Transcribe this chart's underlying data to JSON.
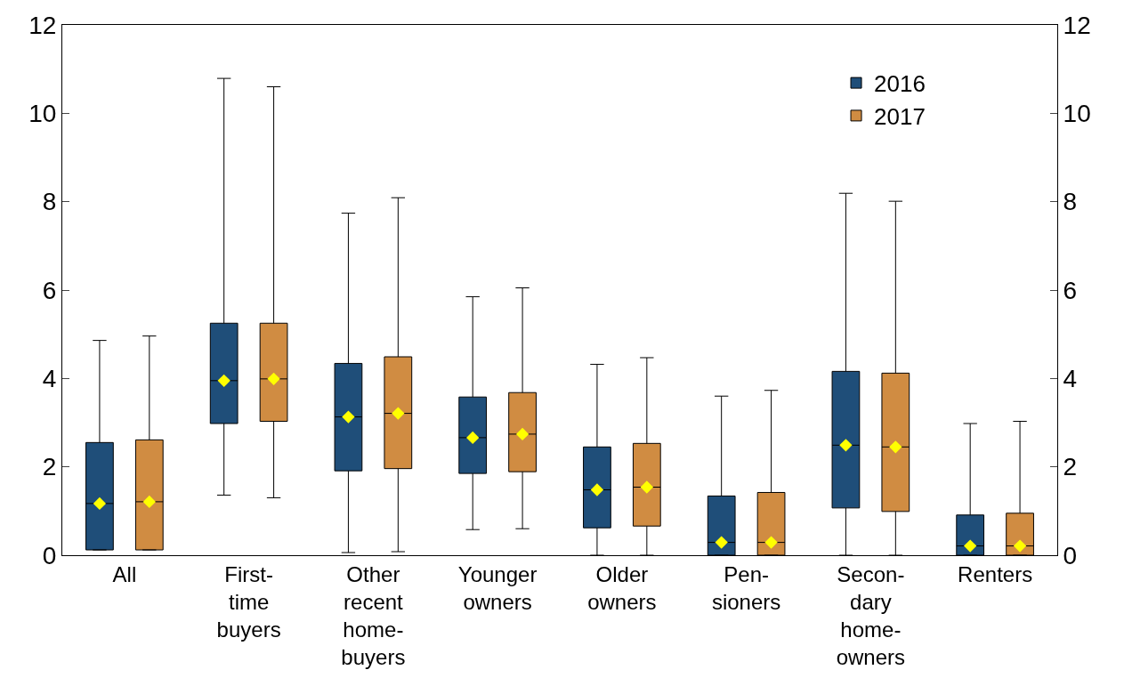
{
  "chart_data": {
    "type": "box",
    "categories": [
      "All",
      "First-\ntime\nbuyers",
      "Other\nrecent\nhome-\nbuyers",
      "Younger\nowners",
      "Older\nowners",
      "Pen-\nsioners",
      "Secon-\ndary\nhome-\nowners",
      "Renters"
    ],
    "series": [
      {
        "name": "2016",
        "color": "#1f4e79",
        "boxes": [
          {
            "low": 0.12,
            "q1": 0.12,
            "median": 1.17,
            "q3": 2.55,
            "high": 4.86,
            "mean": 1.17
          },
          {
            "low": 1.36,
            "q1": 2.98,
            "median": 3.95,
            "q3": 5.25,
            "high": 10.79,
            "mean": 3.95
          },
          {
            "low": 0.06,
            "q1": 1.91,
            "median": 3.13,
            "q3": 4.34,
            "high": 7.74,
            "mean": 3.13
          },
          {
            "low": 0.58,
            "q1": 1.85,
            "median": 2.66,
            "q3": 3.58,
            "high": 5.85,
            "mean": 2.66
          },
          {
            "low": 0,
            "q1": 0.62,
            "median": 1.48,
            "q3": 2.45,
            "high": 4.32,
            "mean": 1.48
          },
          {
            "low": 0,
            "q1": 0,
            "median": 0.29,
            "q3": 1.34,
            "high": 3.6,
            "mean": 0.29
          },
          {
            "low": 0,
            "q1": 1.07,
            "median": 2.49,
            "q3": 4.16,
            "high": 8.19,
            "mean": 2.49
          },
          {
            "low": 0,
            "q1": 0,
            "median": 0.21,
            "q3": 0.91,
            "high": 2.98,
            "mean": 0.21
          }
        ]
      },
      {
        "name": "2017",
        "color": "#d08c42",
        "boxes": [
          {
            "low": 0.12,
            "q1": 0.12,
            "median": 1.21,
            "q3": 2.61,
            "high": 4.96,
            "mean": 1.21
          },
          {
            "low": 1.3,
            "q1": 3.03,
            "median": 3.99,
            "q3": 5.25,
            "high": 10.6,
            "mean": 3.99
          },
          {
            "low": 0.08,
            "q1": 1.96,
            "median": 3.21,
            "q3": 4.49,
            "high": 8.09,
            "mean": 3.21
          },
          {
            "low": 0.6,
            "q1": 1.89,
            "median": 2.74,
            "q3": 3.68,
            "high": 6.05,
            "mean": 2.74
          },
          {
            "low": 0,
            "q1": 0.66,
            "median": 1.54,
            "q3": 2.53,
            "high": 4.47,
            "mean": 1.54
          },
          {
            "low": 0,
            "q1": 0,
            "median": 0.29,
            "q3": 1.42,
            "high": 3.73,
            "mean": 0.29
          },
          {
            "low": 0,
            "q1": 0.99,
            "median": 2.45,
            "q3": 4.12,
            "high": 8.01,
            "mean": 2.45
          },
          {
            "low": 0,
            "q1": 0,
            "median": 0.21,
            "q3": 0.95,
            "high": 3.03,
            "mean": 0.21
          }
        ]
      }
    ],
    "ylim": [
      0,
      12
    ],
    "yticks": [
      0,
      2,
      4,
      6,
      8,
      10,
      12
    ],
    "y2lim": [
      0,
      12
    ],
    "y2ticks": [
      0,
      2,
      4,
      6,
      8,
      10,
      12
    ],
    "legend": "top right",
    "marker": "diamond"
  }
}
